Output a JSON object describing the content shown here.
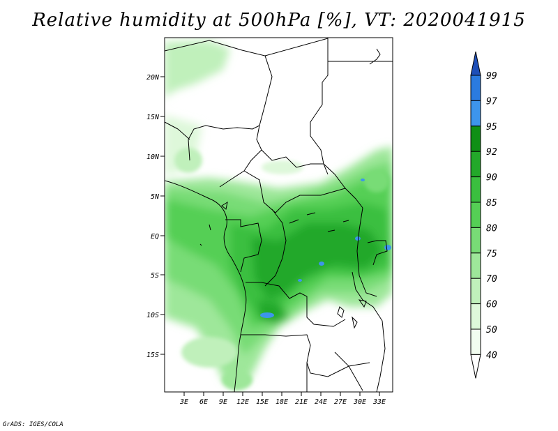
{
  "title": "Relative humidity at 500hPa [%], VT: 2020041915",
  "credit": "GrADS: IGES/COLA",
  "map": {
    "variable": "Relative humidity",
    "level": "500hPa",
    "units": "%",
    "valid_time": "2020041915",
    "lat_labels": [
      "20N",
      "15N",
      "10N",
      "5N",
      "EQ",
      "5S",
      "10S",
      "15S"
    ],
    "lon_labels": [
      "3E",
      "6E",
      "9E",
      "12E",
      "15E",
      "18E",
      "21E",
      "24E",
      "27E",
      "30E",
      "33E"
    ]
  },
  "colorbar": {
    "levels": [
      "99",
      "97",
      "95",
      "92",
      "90",
      "85",
      "80",
      "75",
      "70",
      "60",
      "50",
      "40"
    ],
    "colors": [
      "#1c5fd0",
      "#2b7be0",
      "#3d95ec",
      "#0f8f16",
      "#23a82a",
      "#3abf3f",
      "#55cf55",
      "#78dc76",
      "#9ee79a",
      "#c0f0bb",
      "#def8da",
      "#f2fdf0"
    ],
    "top_arrow_color": "#1e4fb8",
    "bottom_arrow_color": "#ffffff"
  }
}
